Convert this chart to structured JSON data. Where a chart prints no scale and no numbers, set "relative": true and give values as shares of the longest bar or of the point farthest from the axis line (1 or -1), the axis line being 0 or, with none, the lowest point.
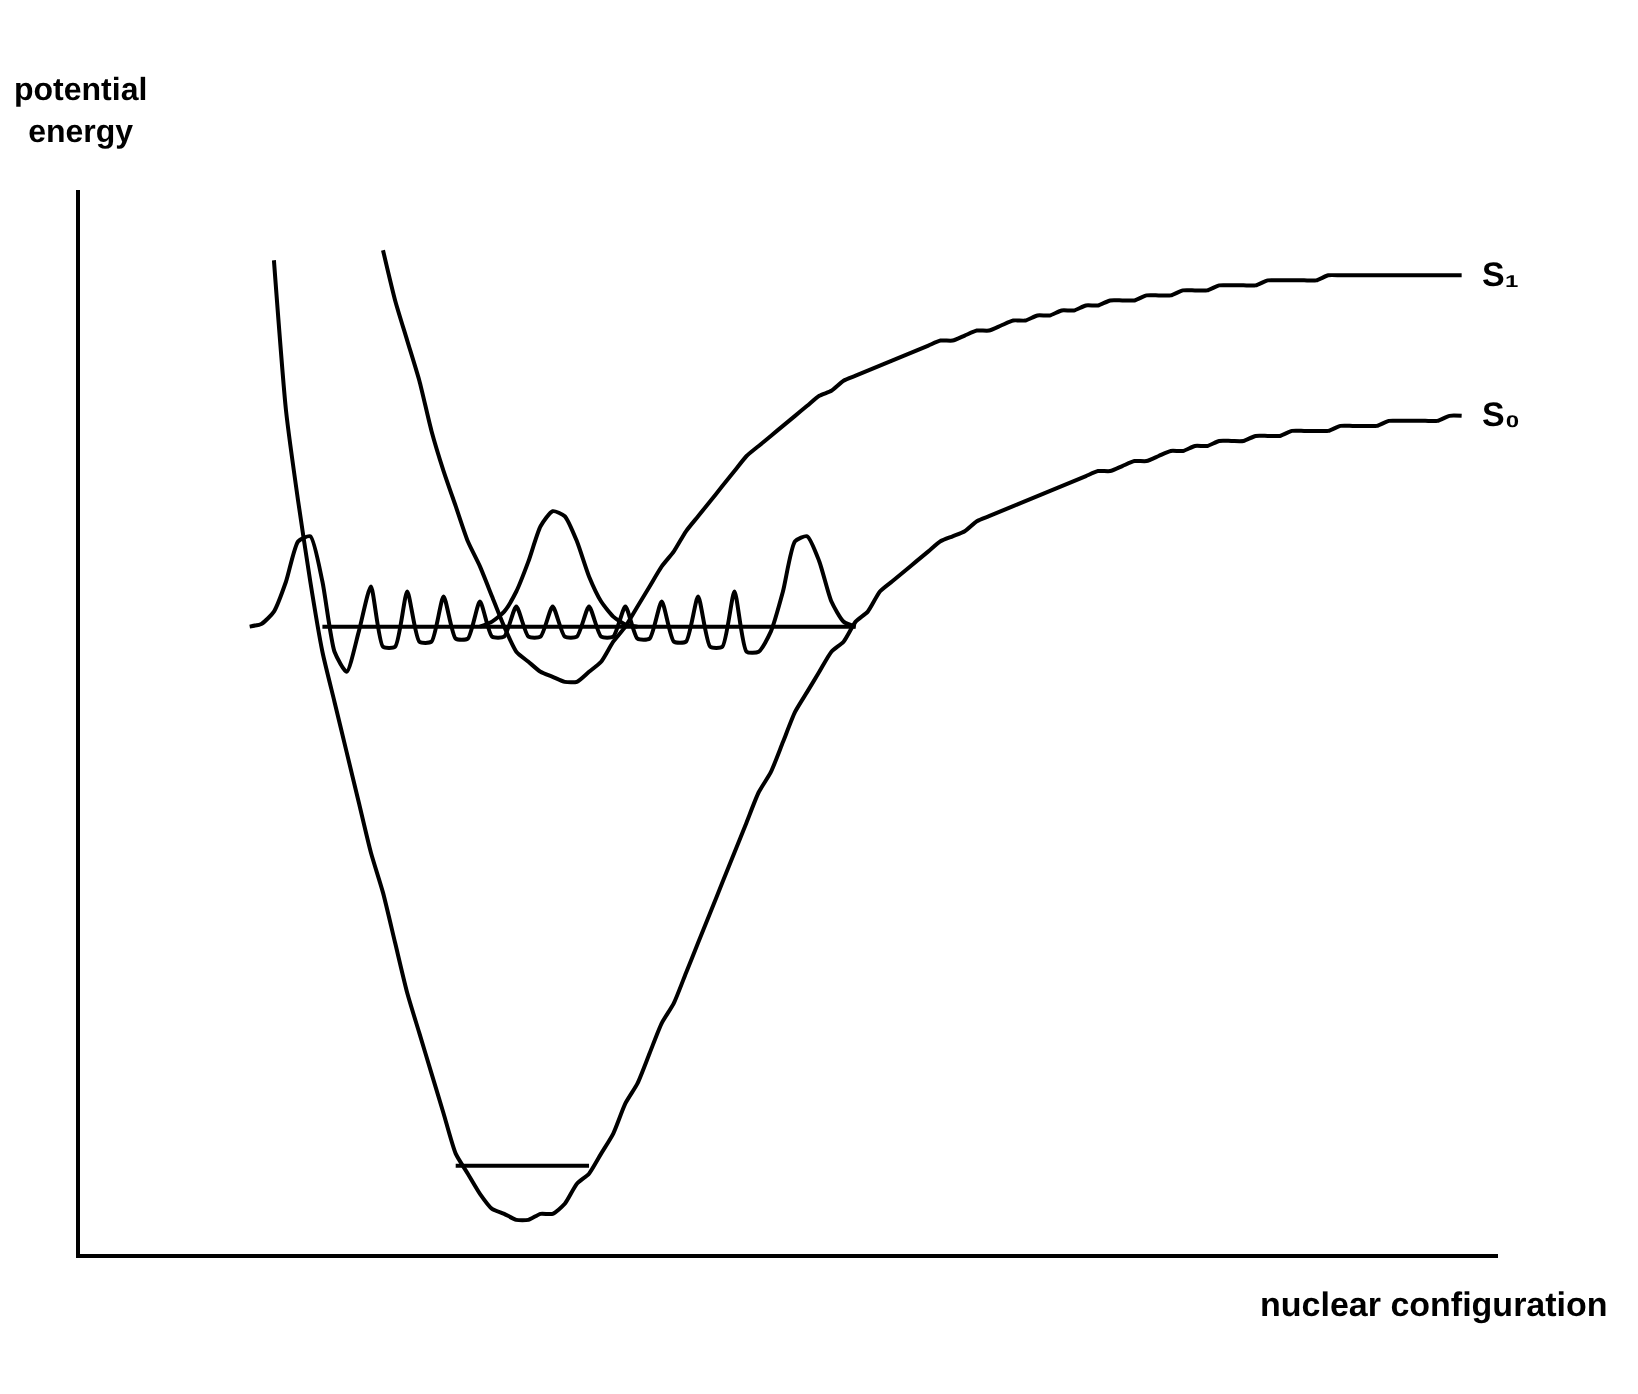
{
  "chart_data": {
    "type": "line",
    "relative": true,
    "xlabel": "nuclear configuration",
    "ylabel": "potential energy",
    "categories": [
      null,
      null,
      null,
      null,
      null,
      null,
      null,
      null,
      null,
      null,
      null,
      null,
      null,
      null,
      null,
      null,
      null,
      null,
      null,
      null,
      null,
      null,
      null,
      null,
      null,
      null,
      null,
      null,
      null,
      null,
      null,
      null,
      null,
      null,
      null,
      null,
      null,
      null,
      null,
      null,
      null,
      null,
      null,
      null,
      null,
      null,
      null,
      null,
      null,
      null,
      null,
      null,
      null,
      null,
      null,
      null,
      null,
      null,
      null,
      null,
      null,
      null,
      null,
      null,
      null,
      null,
      null,
      null,
      null,
      null,
      null,
      null,
      null,
      null,
      null,
      null,
      null,
      null,
      null,
      null,
      null,
      null,
      null,
      null,
      null,
      null,
      null,
      null,
      null,
      null,
      null,
      null,
      null,
      null,
      null,
      null,
      null,
      null,
      null,
      null,
      null,
      null
    ],
    "series": [
      {
        "name": "S₁",
        "color": "#000000",
        "values": [
          null,
          null,
          null,
          null,
          null,
          null,
          null,
          null,
          null,
          null,
          null,
          1.0,
          0.95,
          0.91,
          0.87,
          0.82,
          0.78,
          0.745,
          0.71,
          0.685,
          0.655,
          0.625,
          0.6,
          0.59,
          0.58,
          0.575,
          0.57,
          0.57,
          0.58,
          0.59,
          0.61,
          0.625,
          0.645,
          0.665,
          0.685,
          0.7,
          0.72,
          0.735,
          0.75,
          0.765,
          0.78,
          0.795,
          0.805,
          0.815,
          0.825,
          0.835,
          0.845,
          0.855,
          0.86,
          0.87,
          0.875,
          0.88,
          0.885,
          0.89,
          0.895,
          0.9,
          0.905,
          0.91,
          0.91,
          0.915,
          0.92,
          0.92,
          0.925,
          0.93,
          0.93,
          0.935,
          0.935,
          0.94,
          0.94,
          0.945,
          0.945,
          0.95,
          0.95,
          0.95,
          0.955,
          0.955,
          0.955,
          0.96,
          0.96,
          0.96,
          0.965,
          0.965,
          0.965,
          0.965,
          0.97,
          0.97,
          0.97,
          0.97,
          0.97,
          0.975,
          0.975,
          0.975,
          0.975,
          0.975,
          0.975,
          0.975,
          0.975,
          0.975,
          0.975,
          0.975,
          0.975,
          null
        ]
      },
      {
        "name": "S₀",
        "color": "#000000",
        "values": [
          null,
          null,
          0.99,
          0.84,
          0.75,
          0.67,
          0.6,
          0.55,
          0.5,
          0.45,
          0.4,
          0.36,
          0.31,
          0.26,
          0.22,
          0.18,
          0.14,
          0.1,
          0.08,
          0.06,
          0.045,
          0.04,
          0.034,
          0.034,
          0.04,
          0.04,
          0.05,
          0.07,
          0.08,
          0.1,
          0.12,
          0.15,
          0.17,
          0.2,
          0.23,
          0.25,
          0.28,
          0.31,
          0.34,
          0.37,
          0.4,
          0.43,
          0.46,
          0.48,
          0.51,
          0.54,
          0.56,
          0.58,
          0.6,
          0.61,
          0.63,
          0.64,
          0.66,
          0.67,
          0.68,
          0.69,
          0.7,
          0.71,
          0.715,
          0.72,
          0.73,
          0.735,
          0.74,
          0.745,
          0.75,
          0.755,
          0.76,
          0.765,
          0.77,
          0.775,
          0.78,
          0.78,
          0.785,
          0.79,
          0.79,
          0.795,
          0.8,
          0.8,
          0.805,
          0.805,
          0.81,
          0.81,
          0.81,
          0.815,
          0.815,
          0.815,
          0.82,
          0.82,
          0.82,
          0.82,
          0.825,
          0.825,
          0.825,
          0.825,
          0.83,
          0.83,
          0.83,
          0.83,
          0.83,
          0.835,
          0.835,
          null
        ]
      },
      {
        "color": "#000000",
        "values": [
          null,
          null,
          null,
          null,
          null,
          null,
          0.625,
          0.625,
          0.625,
          0.625,
          0.625,
          0.625,
          0.625,
          0.625,
          0.625,
          0.625,
          0.625,
          0.625,
          0.625,
          0.625,
          0.625,
          0.625,
          0.625,
          0.625,
          0.625,
          0.625,
          0.625,
          0.625,
          0.625,
          0.625,
          0.625,
          0.625,
          0.625,
          0.625,
          0.625,
          0.625,
          0.625,
          0.625,
          0.625,
          0.625,
          0.625,
          0.625,
          0.625,
          0.625,
          0.625,
          0.625,
          0.625,
          0.625,
          0.625,
          0.625,
          0.625,
          null,
          null,
          null,
          null,
          null,
          null,
          null,
          null,
          null,
          null,
          null,
          null,
          null,
          null,
          null,
          null,
          null,
          null,
          null,
          null,
          null,
          null,
          null,
          null,
          null,
          null,
          null,
          null,
          null,
          null,
          null,
          null,
          null,
          null,
          null,
          null,
          null,
          null,
          null,
          null,
          null,
          null,
          null,
          null,
          null,
          null,
          null,
          null,
          null,
          null,
          null
        ]
      },
      {
        "color": "#000000",
        "values": [
          null,
          null,
          null,
          null,
          null,
          null,
          null,
          null,
          null,
          null,
          null,
          null,
          null,
          null,
          null,
          null,
          null,
          0.088,
          0.088,
          0.088,
          0.088,
          0.088,
          0.088,
          0.088,
          0.088,
          0.088,
          0.088,
          0.088,
          0.088,
          null,
          null,
          null,
          null,
          null,
          null,
          null,
          null,
          null,
          null,
          null,
          null,
          null,
          null,
          null,
          null,
          null,
          null,
          null,
          null,
          null,
          null,
          null,
          null,
          null,
          null,
          null,
          null,
          null,
          null,
          null,
          null,
          null,
          null,
          null,
          null,
          null,
          null,
          null,
          null,
          null,
          null,
          null,
          null,
          null,
          null,
          null,
          null,
          null,
          null,
          null,
          null,
          null,
          null,
          null,
          null,
          null,
          null,
          null,
          null,
          null,
          null,
          null,
          null,
          null,
          null,
          null,
          null,
          null,
          null,
          null,
          null,
          null
        ]
      },
      {
        "color": "#000000",
        "values": [
          0.625,
          0.628,
          0.64,
          0.67,
          0.71,
          0.715,
          0.67,
          0.6,
          0.58,
          0.62,
          0.665,
          0.605,
          0.605,
          0.66,
          0.61,
          0.61,
          0.655,
          0.613,
          0.613,
          0.65,
          0.615,
          0.615,
          0.645,
          0.615,
          0.615,
          0.645,
          0.615,
          0.615,
          0.645,
          0.615,
          0.615,
          0.645,
          0.613,
          0.613,
          0.65,
          0.61,
          0.61,
          0.655,
          0.605,
          0.605,
          0.66,
          0.6,
          0.6,
          0.62,
          0.66,
          0.71,
          0.715,
          0.69,
          0.65,
          0.63,
          0.625,
          null,
          null,
          null,
          null,
          null,
          null,
          null,
          null,
          null,
          null,
          null,
          null,
          null,
          null,
          null,
          null,
          null,
          null,
          null,
          null,
          null,
          null,
          null,
          null,
          null,
          null,
          null,
          null,
          null,
          null,
          null,
          null,
          null,
          null,
          null,
          null,
          null,
          null,
          null,
          null,
          null,
          null,
          null,
          null,
          null,
          null,
          null,
          null,
          null,
          null,
          null
        ]
      },
      {
        "color": "#000000",
        "values": [
          null,
          null,
          null,
          null,
          null,
          null,
          null,
          null,
          null,
          null,
          null,
          null,
          null,
          null,
          null,
          null,
          null,
          null,
          null,
          0.625,
          0.63,
          0.64,
          0.66,
          0.69,
          0.725,
          0.74,
          0.735,
          0.71,
          0.675,
          0.65,
          0.635,
          0.627,
          0.625,
          null,
          null,
          null,
          null,
          null,
          null,
          null,
          null,
          null,
          null,
          null,
          null,
          null,
          null,
          null,
          null,
          null,
          null,
          null,
          null,
          null,
          null,
          null,
          null,
          null,
          null,
          null,
          null,
          null,
          null,
          null,
          null,
          null,
          null,
          null,
          null,
          null,
          null,
          null,
          null,
          null,
          null,
          null,
          null,
          null,
          null,
          null,
          null,
          null,
          null,
          null,
          null,
          null,
          null,
          null,
          null,
          null,
          null,
          null,
          null,
          null,
          null,
          null,
          null,
          null,
          null,
          null,
          null,
          null
        ]
      }
    ]
  }
}
